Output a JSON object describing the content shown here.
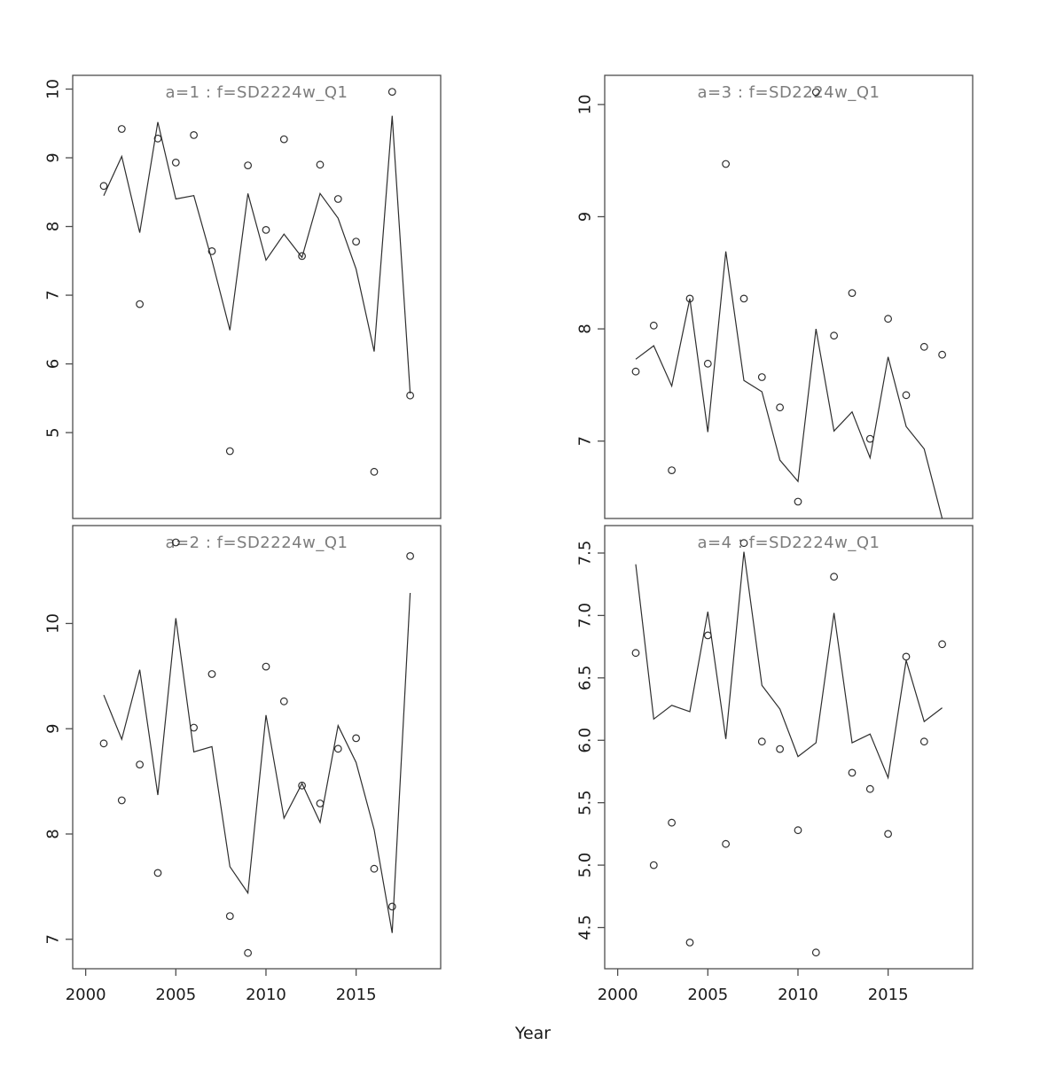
{
  "figure": {
    "xlabel": "Year",
    "background": "#ffffff",
    "title_color": "#7d7d7d",
    "text_color": "#1a1a1a",
    "box_color": "#4d4d4d",
    "line_color": "#2e2e2e",
    "point_color": "#2e2e2e"
  },
  "chart_data": [
    {
      "type": "line",
      "subtype": "line+scatter",
      "position": "top-left",
      "title": "a=1 : f=SD2224w_Q1",
      "xlabel": "Year",
      "x": [
        2001,
        2002,
        2003,
        2004,
        2005,
        2006,
        2007,
        2008,
        2009,
        2010,
        2011,
        2012,
        2013,
        2014,
        2015,
        2016,
        2017,
        2018
      ],
      "xlim": [
        1999.28,
        2019.69
      ],
      "ylim": [
        3.75,
        10.2
      ],
      "xticks": [
        2000,
        2005,
        2010,
        2015
      ],
      "xtick_labels": [
        "2000",
        "2005",
        "2010",
        "2015"
      ],
      "show_x_tick_labels": false,
      "yticks": [
        5,
        6,
        7,
        8,
        9,
        10
      ],
      "ytick_labels": [
        "5",
        "6",
        "7",
        "8",
        "9",
        "10"
      ],
      "series": [
        {
          "name": "observed-points",
          "style": "scatter",
          "values": [
            8.59,
            9.42,
            6.87,
            9.28,
            8.93,
            9.33,
            7.64,
            4.73,
            8.89,
            7.95,
            9.27,
            7.57,
            8.9,
            8.4,
            7.78,
            4.43,
            9.96,
            5.54
          ]
        },
        {
          "name": "fitted-line",
          "style": "line",
          "values": [
            8.45,
            9.02,
            7.91,
            9.52,
            8.4,
            8.45,
            7.51,
            6.49,
            8.48,
            7.51,
            7.89,
            7.55,
            8.48,
            8.12,
            7.38,
            6.18,
            9.61,
            5.57
          ]
        }
      ]
    },
    {
      "type": "line",
      "subtype": "line+scatter",
      "position": "bottom-left",
      "title": "a=2 : f=SD2224w_Q1",
      "xlabel": "Year",
      "x": [
        2001,
        2002,
        2003,
        2004,
        2005,
        2006,
        2007,
        2008,
        2009,
        2010,
        2011,
        2012,
        2013,
        2014,
        2015,
        2016,
        2017,
        2018
      ],
      "xlim": [
        1999.28,
        2019.69
      ],
      "ylim": [
        6.72,
        10.93
      ],
      "xticks": [
        2000,
        2005,
        2010,
        2015
      ],
      "xtick_labels": [
        "2000",
        "2005",
        "2010",
        "2015"
      ],
      "show_x_tick_labels": true,
      "yticks": [
        7,
        8,
        9,
        10
      ],
      "ytick_labels": [
        "7",
        "8",
        "9",
        "10"
      ],
      "series": [
        {
          "name": "observed-points",
          "style": "scatter",
          "values": [
            8.86,
            8.32,
            8.66,
            7.63,
            10.77,
            9.01,
            9.52,
            7.22,
            6.87,
            9.59,
            9.26,
            8.46,
            8.29,
            8.81,
            8.91,
            7.67,
            7.31,
            10.64
          ]
        },
        {
          "name": "fitted-line",
          "style": "line",
          "values": [
            9.32,
            8.9,
            9.56,
            8.37,
            10.05,
            8.78,
            8.83,
            7.69,
            7.44,
            9.13,
            8.15,
            8.48,
            8.11,
            9.03,
            8.68,
            8.04,
            7.06,
            10.29
          ]
        }
      ]
    },
    {
      "type": "line",
      "subtype": "line+scatter",
      "position": "top-right",
      "title": "a=3 : f=SD2224w_Q1",
      "xlabel": "Year",
      "x": [
        2001,
        2002,
        2003,
        2004,
        2005,
        2006,
        2007,
        2008,
        2009,
        2010,
        2011,
        2012,
        2013,
        2014,
        2015,
        2016,
        2017,
        2018
      ],
      "xlim": [
        1999.28,
        2019.69
      ],
      "ylim": [
        6.31,
        10.26
      ],
      "xticks": [
        2000,
        2005,
        2010,
        2015
      ],
      "xtick_labels": [
        "2000",
        "2005",
        "2010",
        "2015"
      ],
      "show_x_tick_labels": false,
      "yticks": [
        7,
        8,
        9,
        10
      ],
      "ytick_labels": [
        "7",
        "8",
        "9",
        "10"
      ],
      "series": [
        {
          "name": "observed-points",
          "style": "scatter",
          "values": [
            7.62,
            8.03,
            6.74,
            8.27,
            7.69,
            9.47,
            8.27,
            7.57,
            7.3,
            6.46,
            10.11,
            7.94,
            8.32,
            7.02,
            8.09,
            7.41,
            7.84,
            7.77
          ]
        },
        {
          "name": "fitted-line",
          "style": "line",
          "values": [
            7.73,
            7.85,
            7.49,
            8.27,
            7.08,
            8.69,
            7.54,
            7.44,
            6.83,
            6.64,
            8.0,
            7.09,
            7.26,
            6.85,
            7.75,
            7.13,
            6.93,
            6.31
          ]
        }
      ]
    },
    {
      "type": "line",
      "subtype": "line+scatter",
      "position": "bottom-right",
      "title": "a=4 : f=SD2224w_Q1",
      "xlabel": "Year",
      "x": [
        2001,
        2002,
        2003,
        2004,
        2005,
        2006,
        2007,
        2008,
        2009,
        2010,
        2011,
        2012,
        2013,
        2014,
        2015,
        2016,
        2017,
        2018
      ],
      "xlim": [
        1999.28,
        2019.69
      ],
      "ylim": [
        4.17,
        7.72
      ],
      "xticks": [
        2000,
        2005,
        2010,
        2015
      ],
      "xtick_labels": [
        "2000",
        "2005",
        "2010",
        "2015"
      ],
      "show_x_tick_labels": true,
      "yticks": [
        4.5,
        5.0,
        5.5,
        6.0,
        6.5,
        7.0,
        7.5
      ],
      "ytick_labels": [
        "4.5",
        "5.0",
        "5.5",
        "6.0",
        "6.5",
        "7.0",
        "7.5"
      ],
      "series": [
        {
          "name": "observed-points",
          "style": "scatter",
          "values": [
            6.7,
            5.0,
            5.34,
            4.38,
            6.84,
            5.17,
            7.58,
            5.99,
            5.93,
            5.28,
            4.3,
            7.31,
            5.74,
            5.61,
            5.25,
            6.67,
            5.99,
            6.77
          ]
        },
        {
          "name": "fitted-line",
          "style": "line",
          "values": [
            7.41,
            6.17,
            6.28,
            6.23,
            7.03,
            6.01,
            7.51,
            6.44,
            6.25,
            5.87,
            5.98,
            7.02,
            5.98,
            6.05,
            5.7,
            6.64,
            6.15,
            6.26
          ]
        }
      ]
    }
  ]
}
